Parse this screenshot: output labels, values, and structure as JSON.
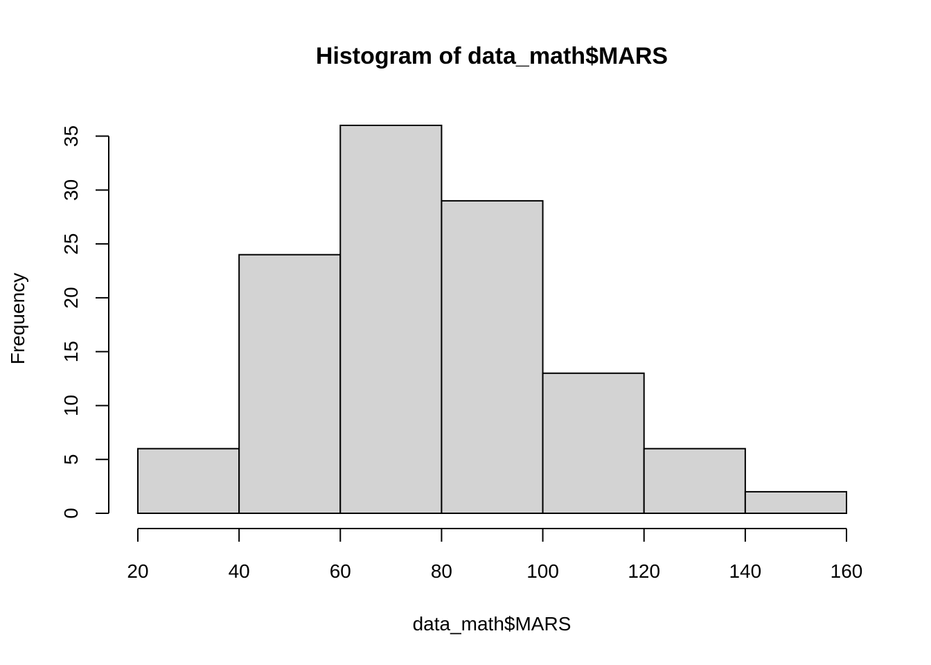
{
  "chart_data": {
    "type": "bar",
    "title": "Histogram of data_math$MARS",
    "xlabel": "data_math$MARS",
    "ylabel": "Frequency",
    "bins": [
      {
        "start": 20,
        "end": 40,
        "value": 6
      },
      {
        "start": 40,
        "end": 60,
        "value": 24
      },
      {
        "start": 60,
        "end": 80,
        "value": 36
      },
      {
        "start": 80,
        "end": 100,
        "value": 29
      },
      {
        "start": 100,
        "end": 120,
        "value": 13
      },
      {
        "start": 120,
        "end": 140,
        "value": 6
      },
      {
        "start": 140,
        "end": 160,
        "value": 2
      }
    ],
    "x_ticks": [
      "20",
      "40",
      "60",
      "80",
      "100",
      "120",
      "140",
      "160"
    ],
    "y_ticks": [
      "0",
      "5",
      "10",
      "15",
      "20",
      "25",
      "30",
      "35"
    ],
    "xlim": [
      20,
      160
    ],
    "ylim": [
      0,
      36
    ],
    "grid": false,
    "colors": {
      "bar_fill": "#d3d3d3",
      "bar_stroke": "#000000"
    }
  }
}
